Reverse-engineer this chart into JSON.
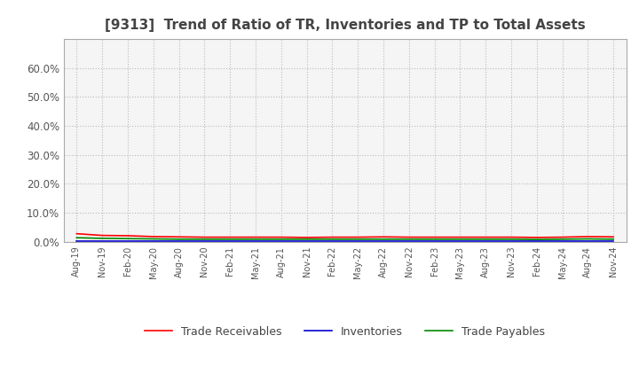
{
  "title": "[9313]  Trend of Ratio of TR, Inventories and TP to Total Assets",
  "title_fontsize": 11,
  "title_color": "#444444",
  "background_color": "#ffffff",
  "plot_bg_color": "#f5f5f5",
  "grid_color": "#bbbbbb",
  "ylim": [
    0.0,
    0.7
  ],
  "yticks": [
    0.0,
    0.1,
    0.2,
    0.3,
    0.4,
    0.5,
    0.6
  ],
  "ytick_labels": [
    "0.0%",
    "10.0%",
    "20.0%",
    "30.0%",
    "40.0%",
    "50.0%",
    "60.0%"
  ],
  "x_labels": [
    "Aug-19",
    "Nov-19",
    "Feb-20",
    "May-20",
    "Aug-20",
    "Nov-20",
    "Feb-21",
    "May-21",
    "Aug-21",
    "Nov-21",
    "Feb-22",
    "May-22",
    "Aug-22",
    "Nov-22",
    "Feb-23",
    "May-23",
    "Aug-23",
    "Nov-23",
    "Feb-24",
    "May-24",
    "Aug-24",
    "Nov-24"
  ],
  "trade_receivables": [
    0.028,
    0.022,
    0.021,
    0.018,
    0.017,
    0.016,
    0.016,
    0.016,
    0.016,
    0.015,
    0.016,
    0.016,
    0.017,
    0.016,
    0.016,
    0.016,
    0.016,
    0.016,
    0.015,
    0.016,
    0.018,
    0.017
  ],
  "inventories": [
    0.002,
    0.002,
    0.002,
    0.002,
    0.002,
    0.002,
    0.002,
    0.002,
    0.002,
    0.002,
    0.002,
    0.002,
    0.002,
    0.002,
    0.002,
    0.002,
    0.002,
    0.002,
    0.002,
    0.002,
    0.002,
    0.002
  ],
  "trade_payables": [
    0.014,
    0.012,
    0.011,
    0.01,
    0.009,
    0.009,
    0.009,
    0.009,
    0.009,
    0.009,
    0.009,
    0.009,
    0.009,
    0.009,
    0.009,
    0.009,
    0.009,
    0.009,
    0.008,
    0.009,
    0.01,
    0.009
  ],
  "tr_color": "#ff0000",
  "inv_color": "#0000cc",
  "tp_color": "#008800",
  "line_width": 1.2,
  "legend_labels": [
    "Trade Receivables",
    "Inventories",
    "Trade Payables"
  ]
}
